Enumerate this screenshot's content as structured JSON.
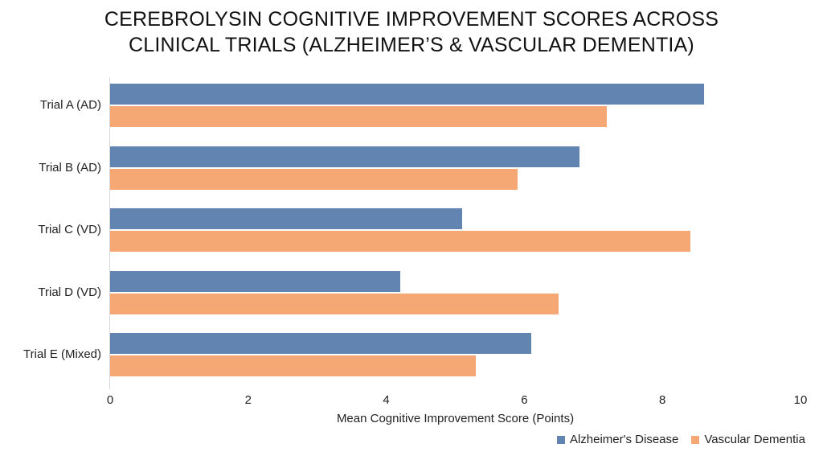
{
  "chart_data": {
    "type": "bar",
    "orientation": "horizontal",
    "title": "CEREBROLYSIN COGNITIVE IMPROVEMENT SCORES ACROSS CLINICAL TRIALS (ALZHEIMER’S & VASCULAR DEMENTIA)",
    "title_lines": [
      "CEREBROLYSIN COGNITIVE IMPROVEMENT SCORES ACROSS",
      "CLINICAL TRIALS (ALZHEIMER’S & VASCULAR DEMENTIA)"
    ],
    "categories": [
      "Trial A (AD)",
      "Trial B (AD)",
      "Trial C (VD)",
      "Trial D (VD)",
      "Trial E (Mixed)"
    ],
    "series": [
      {
        "name": "Alzheimer's Disease",
        "color": "#6184b0",
        "values": [
          8.6,
          6.8,
          5.1,
          4.2,
          6.1
        ]
      },
      {
        "name": "Vascular Dementia",
        "color": "#f5a873",
        "values": [
          7.2,
          5.9,
          8.4,
          6.5,
          5.3
        ]
      }
    ],
    "xlabel": "Mean Cognitive Improvement Score (Points)",
    "ylabel": "",
    "xlim": [
      0,
      10
    ],
    "xticks": [
      "0",
      "2",
      "4",
      "6",
      "8",
      "10"
    ],
    "grid": false,
    "legend_position": "bottom-right"
  }
}
